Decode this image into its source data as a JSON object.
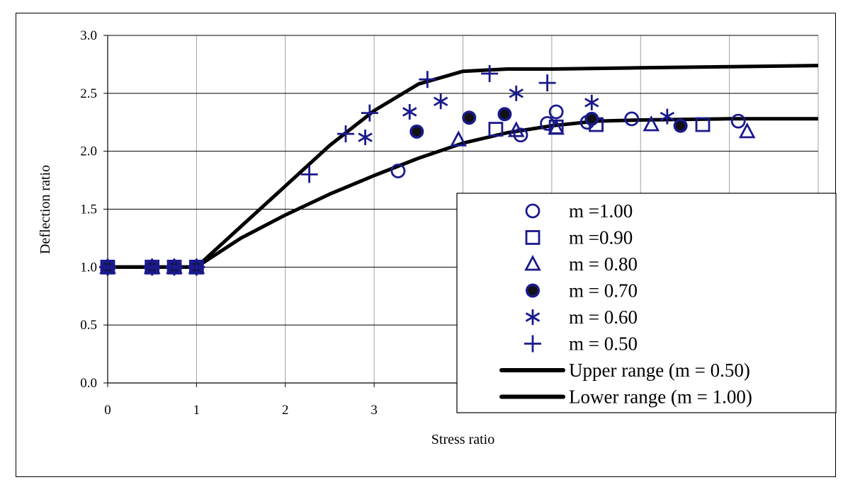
{
  "chart_data": {
    "type": "scatter",
    "xlabel": "Stress ratio",
    "ylabel": "Deflection ratio",
    "xlim": [
      0,
      8
    ],
    "ylim": [
      0,
      3
    ],
    "xticks": [
      "0",
      "1",
      "2",
      "3"
    ],
    "yticks": [
      "0.0",
      "0.5",
      "1.0",
      "1.5",
      "2.0",
      "2.5",
      "3.0"
    ],
    "grid": "vertical and horizontal major gridlines",
    "legend_position": "lower-right",
    "colors": {
      "markers": "#1a1a8c",
      "lines": "#000000"
    },
    "series": [
      {
        "name": "m =1.00",
        "marker": "circle",
        "points": [
          [
            0,
            1.0
          ],
          [
            0.5,
            1.0
          ],
          [
            0.75,
            1.0
          ],
          [
            1.0,
            1.0
          ],
          [
            3.27,
            1.83
          ],
          [
            4.65,
            2.14
          ],
          [
            4.95,
            2.24
          ],
          [
            5.05,
            2.34
          ],
          [
            5.4,
            2.25
          ],
          [
            5.9,
            2.28
          ],
          [
            7.1,
            2.26
          ]
        ]
      },
      {
        "name": "m =0.90",
        "marker": "square",
        "points": [
          [
            0,
            1.0
          ],
          [
            0.5,
            1.0
          ],
          [
            0.75,
            1.0
          ],
          [
            1.0,
            1.0
          ],
          [
            4.37,
            2.19
          ],
          [
            5.05,
            2.21
          ],
          [
            5.5,
            2.23
          ],
          [
            6.7,
            2.23
          ]
        ]
      },
      {
        "name": "m = 0.80",
        "marker": "triangle",
        "points": [
          [
            0,
            1.0
          ],
          [
            0.5,
            1.0
          ],
          [
            0.75,
            1.0
          ],
          [
            1.0,
            1.0
          ],
          [
            3.95,
            2.1
          ],
          [
            4.6,
            2.18
          ],
          [
            5.05,
            2.2
          ],
          [
            6.12,
            2.23
          ],
          [
            7.2,
            2.17
          ]
        ]
      },
      {
        "name": "m = 0.70",
        "marker": "filled-circle",
        "points": [
          [
            0,
            1.0
          ],
          [
            0.5,
            1.0
          ],
          [
            0.75,
            1.0
          ],
          [
            1.0,
            1.0
          ],
          [
            3.48,
            2.17
          ],
          [
            4.07,
            2.29
          ],
          [
            4.47,
            2.32
          ],
          [
            5.45,
            2.28
          ],
          [
            6.45,
            2.22
          ]
        ]
      },
      {
        "name": "m = 0.60",
        "marker": "asterisk",
        "points": [
          [
            0,
            1.0
          ],
          [
            0.5,
            1.0
          ],
          [
            0.75,
            1.0
          ],
          [
            1.0,
            1.0
          ],
          [
            2.9,
            2.12
          ],
          [
            3.4,
            2.34
          ],
          [
            3.75,
            2.43
          ],
          [
            4.6,
            2.5
          ],
          [
            5.45,
            2.42
          ],
          [
            6.3,
            2.3
          ]
        ]
      },
      {
        "name": "m = 0.50",
        "marker": "plus",
        "points": [
          [
            0,
            1.0
          ],
          [
            0.5,
            1.0
          ],
          [
            0.75,
            1.0
          ],
          [
            1.0,
            1.0
          ],
          [
            2.27,
            1.8
          ],
          [
            2.68,
            2.15
          ],
          [
            2.95,
            2.33
          ],
          [
            3.6,
            2.62
          ],
          [
            4.3,
            2.67
          ],
          [
            4.95,
            2.59
          ]
        ]
      },
      {
        "name": "Upper range (m = 0.50)",
        "marker": "line",
        "points": [
          [
            0,
            1.0
          ],
          [
            1.0,
            1.0
          ],
          [
            1.5,
            1.35
          ],
          [
            2.0,
            1.7
          ],
          [
            2.5,
            2.05
          ],
          [
            3.0,
            2.35
          ],
          [
            3.5,
            2.58
          ],
          [
            4.0,
            2.69
          ],
          [
            4.5,
            2.71
          ],
          [
            5.0,
            2.71
          ],
          [
            6.0,
            2.72
          ],
          [
            7.0,
            2.73
          ],
          [
            8.0,
            2.74
          ]
        ]
      },
      {
        "name": "Lower range (m = 1.00)",
        "marker": "line",
        "points": [
          [
            0,
            1.0
          ],
          [
            1.0,
            1.0
          ],
          [
            1.5,
            1.25
          ],
          [
            2.0,
            1.45
          ],
          [
            2.5,
            1.63
          ],
          [
            3.0,
            1.79
          ],
          [
            3.5,
            1.94
          ],
          [
            4.0,
            2.07
          ],
          [
            4.5,
            2.16
          ],
          [
            5.0,
            2.22
          ],
          [
            5.5,
            2.26
          ],
          [
            6.0,
            2.27
          ],
          [
            7.0,
            2.28
          ],
          [
            8.0,
            2.28
          ]
        ]
      }
    ]
  }
}
